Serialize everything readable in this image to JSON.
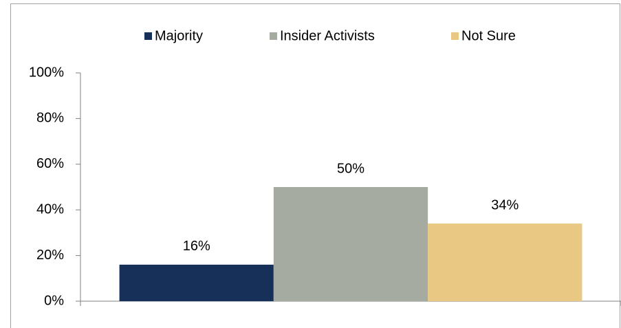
{
  "chart_data": {
    "type": "bar",
    "categories": [
      null
    ],
    "series": [
      {
        "name": "Majority",
        "color": "#17305a",
        "values": [
          16
        ],
        "value_labels": [
          "16%"
        ]
      },
      {
        "name": "Insider Activists",
        "color": "#a6aba1",
        "values": [
          50
        ],
        "value_labels": [
          "50%"
        ]
      },
      {
        "name": "Not Sure",
        "color": "#e8c882",
        "values": [
          34
        ],
        "value_labels": [
          "34%"
        ]
      }
    ],
    "ylim": [
      0,
      100
    ],
    "yticks": [
      {
        "value": 0,
        "label": "0%"
      },
      {
        "value": 20,
        "label": "20%"
      },
      {
        "value": 40,
        "label": "40%"
      },
      {
        "value": 60,
        "label": "60%"
      },
      {
        "value": 80,
        "label": "80%"
      },
      {
        "value": 100,
        "label": "100%"
      }
    ],
    "legend": "top"
  }
}
